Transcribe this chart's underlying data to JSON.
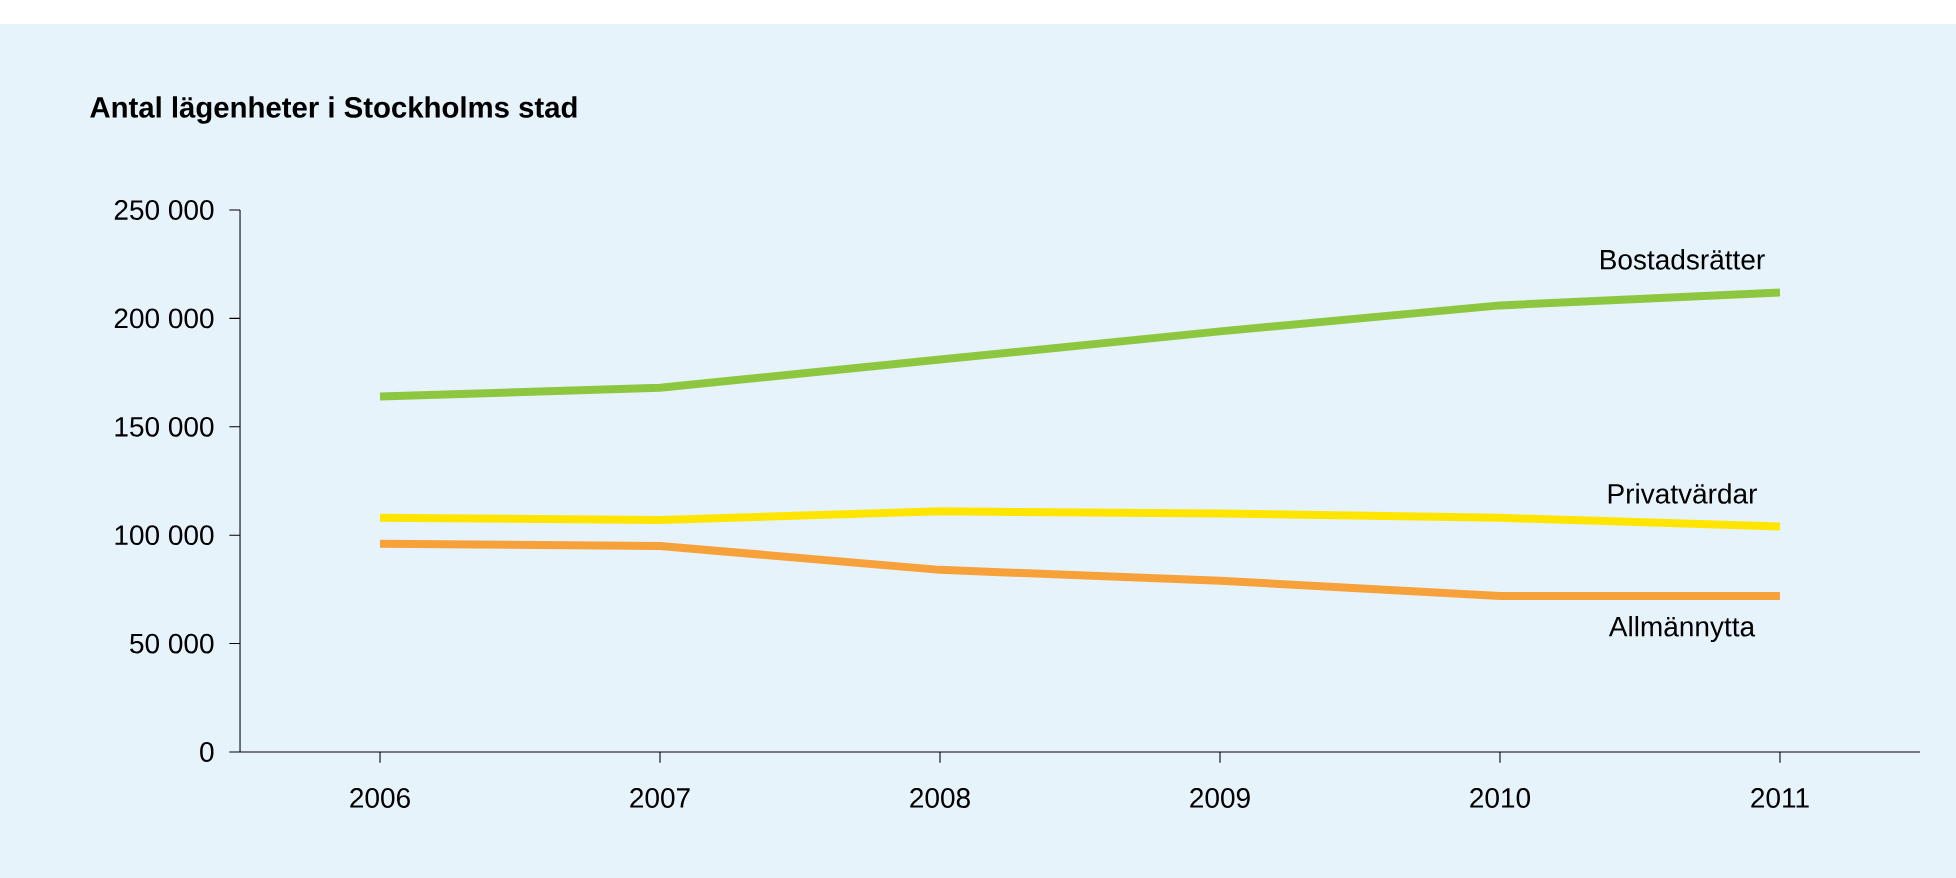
{
  "chart_data": {
    "type": "line",
    "title": "Antal lägenheter i Stockholms stad",
    "x": [
      2006,
      2007,
      2008,
      2009,
      2010,
      2011
    ],
    "series": [
      {
        "name": "Bostadsrätter",
        "color": "#8dc63f",
        "values": [
          164000,
          168000,
          181000,
          194000,
          206000,
          212000
        ]
      },
      {
        "name": "Privatvärdar",
        "color": "#ffe500",
        "values": [
          108000,
          107000,
          111000,
          110000,
          108000,
          104000
        ]
      },
      {
        "name": "Allmännytta",
        "color": "#f7a13a",
        "values": [
          96000,
          95000,
          84000,
          79000,
          72000,
          72000
        ]
      }
    ],
    "xlim": [
      2005.5,
      2011.5
    ],
    "xticks": [
      2006,
      2007,
      2008,
      2009,
      2010,
      2011
    ],
    "ylim": [
      0,
      250000
    ],
    "yticks": [
      0,
      {
        "value": 50000,
        "label": "50 000"
      },
      {
        "value": 100000,
        "label": "100 000"
      },
      {
        "value": 150000,
        "label": "150 000"
      },
      {
        "value": 200000,
        "label": "200 000"
      },
      {
        "value": 250000,
        "label": "250 000"
      }
    ],
    "grid": false,
    "marker": "none",
    "line_style": "solid"
  }
}
